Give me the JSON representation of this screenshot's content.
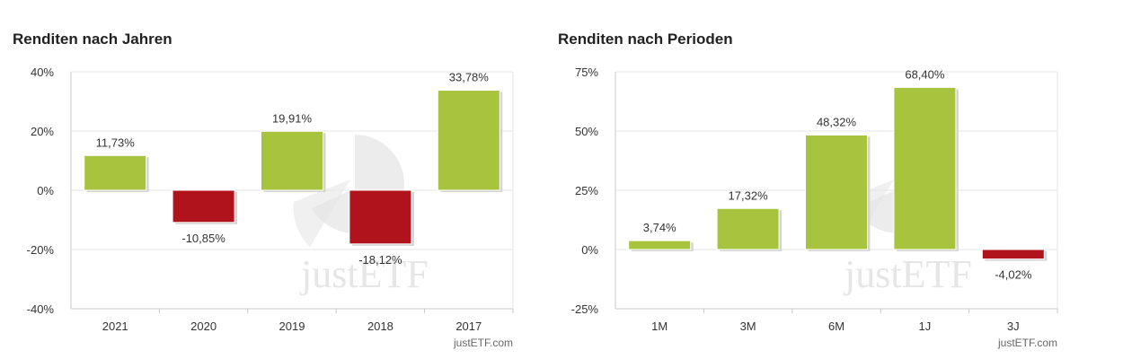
{
  "charts": [
    {
      "title": "Renditen nach Jahren",
      "credit": "justETF.com",
      "watermark": "justETF",
      "chart_data": {
        "type": "bar",
        "categories": [
          "2021",
          "2020",
          "2019",
          "2018",
          "2017"
        ],
        "values": [
          11.73,
          -10.85,
          19.91,
          -18.12,
          33.78
        ],
        "value_labels": [
          "11,73%",
          "-10,85%",
          "19,91%",
          "-18,12%",
          "33,78%"
        ],
        "yticks": [
          40,
          20,
          0,
          -20,
          -40
        ],
        "ytick_labels": [
          "40%",
          "20%",
          "0%",
          "-20%",
          "-40%"
        ],
        "ylim": [
          -40,
          40
        ],
        "title": "Renditen nach Jahren",
        "xlabel": "",
        "ylabel": "",
        "grid": true
      }
    },
    {
      "title": "Renditen nach Perioden",
      "credit": "justETF.com",
      "watermark": "justETF",
      "chart_data": {
        "type": "bar",
        "categories": [
          "1M",
          "3M",
          "6M",
          "1J",
          "3J"
        ],
        "values": [
          3.74,
          17.32,
          48.32,
          68.4,
          -4.02
        ],
        "value_labels": [
          "3,74%",
          "17,32%",
          "48,32%",
          "68,40%",
          "-4,02%"
        ],
        "yticks": [
          75,
          50,
          25,
          0,
          -25
        ],
        "ytick_labels": [
          "75%",
          "50%",
          "25%",
          "0%",
          "-25%"
        ],
        "ylim": [
          -25,
          75
        ],
        "title": "Renditen nach Perioden",
        "xlabel": "",
        "ylabel": "",
        "grid": true
      }
    }
  ],
  "colors": {
    "positive": "#a8c43e",
    "negative": "#b0131b",
    "grid": "#e6e6e6",
    "axis": "#c8c8c8",
    "watermark": "#e6e6e6"
  }
}
